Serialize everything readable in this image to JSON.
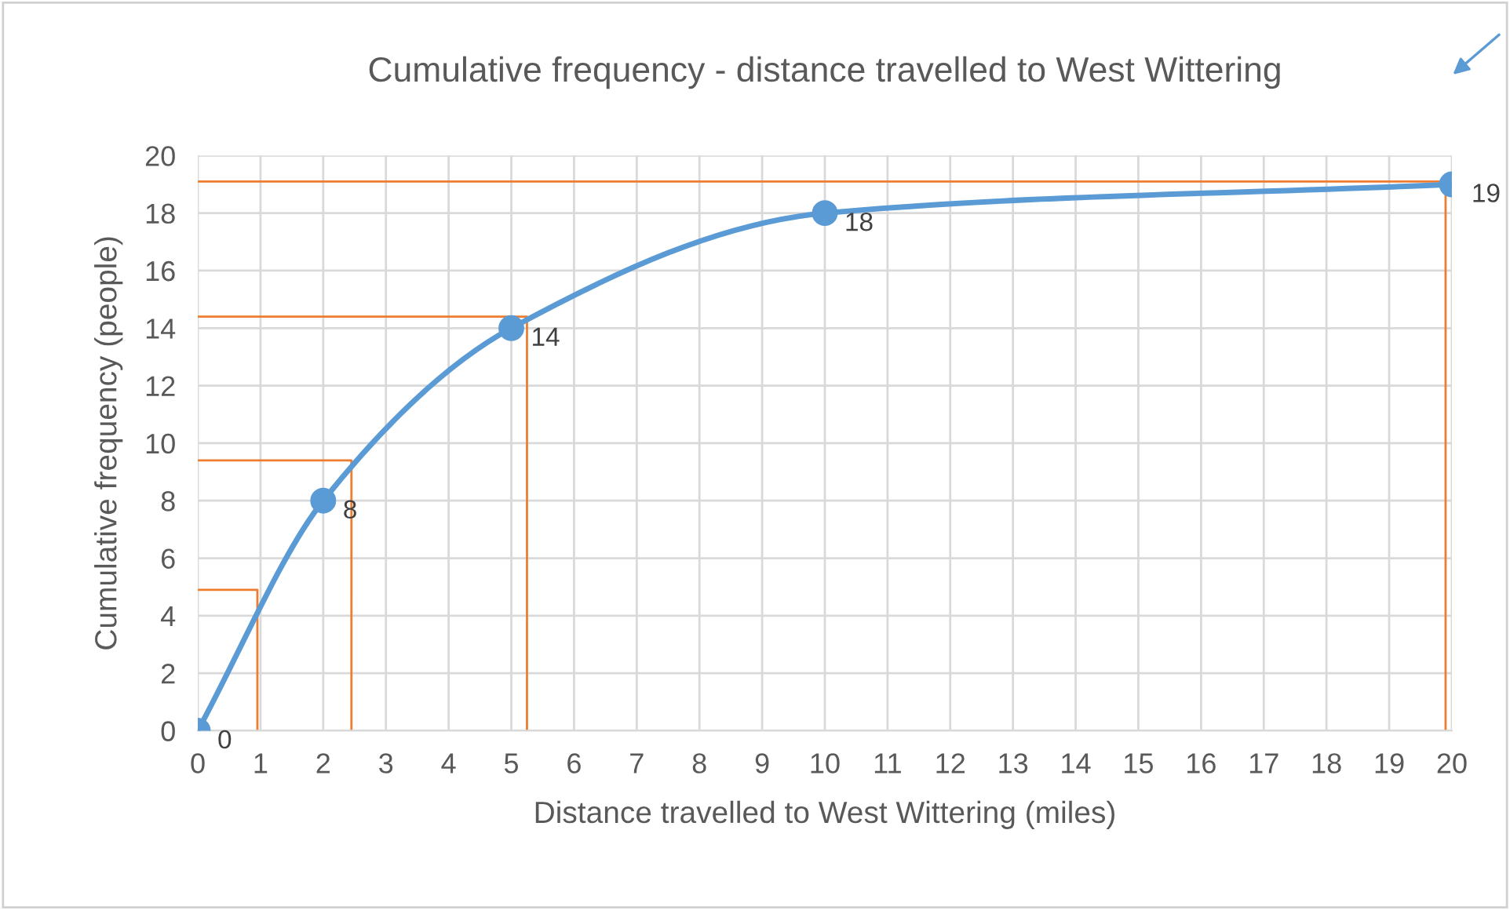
{
  "chart_data": {
    "type": "line",
    "title": "Cumulative frequency - distance travelled to West Wittering",
    "xlabel": "Distance travelled to West Wittering (miles)",
    "ylabel": "Cumulative frequency (people)",
    "x": [
      0,
      2,
      5,
      10,
      20
    ],
    "series": [
      {
        "color": "#5b9bd5",
        "values": [
          0,
          8,
          14,
          18,
          19
        ],
        "data_labels": true,
        "marker": "circle"
      },
      {
        "type": "line",
        "color": "#ed7d31",
        "x": [
          0,
          0.95,
          0.95
        ],
        "values": [
          4.9,
          4.9,
          0
        ],
        "marker": "none"
      },
      {
        "type": "line",
        "color": "#ed7d31",
        "x": [
          0,
          2.45,
          2.45
        ],
        "values": [
          9.4,
          9.4,
          0
        ],
        "marker": "none"
      },
      {
        "type": "line",
        "color": "#ed7d31",
        "x": [
          0,
          5.25,
          5.25
        ],
        "values": [
          14.4,
          14.4,
          0
        ],
        "marker": "none"
      },
      {
        "type": "line",
        "color": "#ed7d31",
        "x": [
          0,
          19.9,
          19.9
        ],
        "values": [
          19.1,
          19.1,
          0
        ],
        "marker": "none"
      }
    ],
    "xlim": [
      0,
      20
    ],
    "xticks": [
      0,
      1,
      2,
      3,
      4,
      5,
      6,
      7,
      8,
      9,
      10,
      11,
      12,
      13,
      14,
      15,
      16,
      17,
      18,
      19,
      20
    ],
    "ylim": [
      0,
      20
    ],
    "yticks": [
      0,
      2,
      4,
      6,
      8,
      10,
      12,
      14,
      16,
      18,
      20
    ],
    "grid": true,
    "legend": false,
    "line_style": "solid"
  }
}
